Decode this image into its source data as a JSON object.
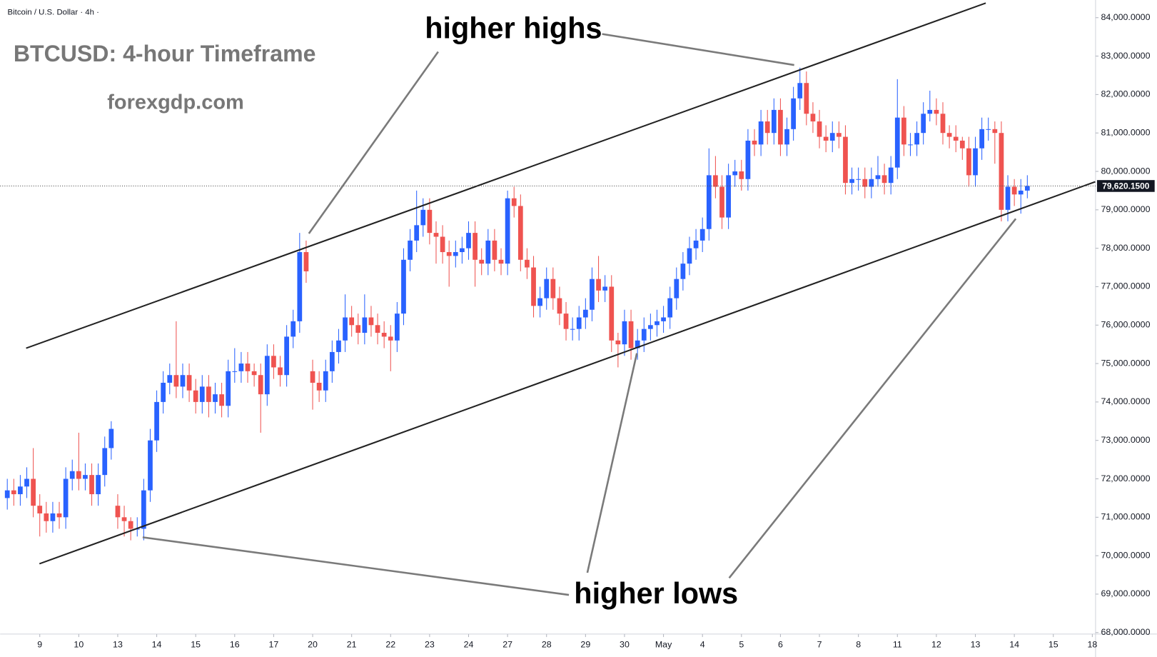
{
  "chart_data": {
    "type": "candlestick",
    "symbol": "Bitcoin / U.S. Dollar · 4h ·",
    "title": "BTCUSD: 4-hour Timeframe",
    "subtitle": "forexgdp.com",
    "annotations": [
      "higher highs",
      "higher lows"
    ],
    "up_color": "#2962ff",
    "down_color": "#ef5350",
    "grid": false,
    "xlim": [
      -1.1,
      167.5
    ],
    "xticks": [
      {
        "value": 5,
        "label": "9"
      },
      {
        "value": 11,
        "label": "10"
      },
      {
        "value": 17,
        "label": "13"
      },
      {
        "value": 23,
        "label": "14"
      },
      {
        "value": 29,
        "label": "15"
      },
      {
        "value": 35,
        "label": "16"
      },
      {
        "value": 41,
        "label": "17"
      },
      {
        "value": 47,
        "label": "20"
      },
      {
        "value": 53,
        "label": "21"
      },
      {
        "value": 59,
        "label": "22"
      },
      {
        "value": 65,
        "label": "23"
      },
      {
        "value": 71,
        "label": "24"
      },
      {
        "value": 77,
        "label": "27"
      },
      {
        "value": 83,
        "label": "28"
      },
      {
        "value": 89,
        "label": "29"
      },
      {
        "value": 95,
        "label": "30"
      },
      {
        "value": 101,
        "label": "May"
      },
      {
        "value": 107,
        "label": "4"
      },
      {
        "value": 113,
        "label": "5"
      },
      {
        "value": 119,
        "label": "6"
      },
      {
        "value": 125,
        "label": "7"
      },
      {
        "value": 131,
        "label": "8"
      },
      {
        "value": 137,
        "label": "11"
      },
      {
        "value": 143,
        "label": "12"
      },
      {
        "value": 149,
        "label": "13"
      },
      {
        "value": 155,
        "label": "14"
      },
      {
        "value": 161,
        "label": "15"
      },
      {
        "value": 167,
        "label": "18"
      }
    ],
    "ylim": [
      67960,
      84460
    ],
    "yticks": [
      {
        "value": 68000,
        "label": "68,000.0000"
      },
      {
        "value": 69000,
        "label": "69,000.0000"
      },
      {
        "value": 70000,
        "label": "70,000.0000"
      },
      {
        "value": 71000,
        "label": "71,000.0000"
      },
      {
        "value": 72000,
        "label": "72,000.0000"
      },
      {
        "value": 73000,
        "label": "73,000.0000"
      },
      {
        "value": 74000,
        "label": "74,000.0000"
      },
      {
        "value": 75000,
        "label": "75,000.0000"
      },
      {
        "value": 76000,
        "label": "76,000.0000"
      },
      {
        "value": 77000,
        "label": "77,000.0000"
      },
      {
        "value": 78000,
        "label": "78,000.0000"
      },
      {
        "value": 79000,
        "label": "79,000.0000"
      },
      {
        "value": 80000,
        "label": "80,000.0000"
      },
      {
        "value": 81000,
        "label": "81,000.0000"
      },
      {
        "value": 82000,
        "label": "82,000.0000"
      },
      {
        "value": 83000,
        "label": "83,000.0000"
      },
      {
        "value": 84000,
        "label": "84,000.0000"
      }
    ],
    "last_price": {
      "value": 79620.15,
      "label": "79,620.1500"
    },
    "trendlines": [
      {
        "color": "#222222",
        "x": [
          2.9,
          150.6
        ],
        "y": [
          75400,
          84380
        ]
      },
      {
        "color": "#222222",
        "x": [
          4.95,
          167.45
        ],
        "y": [
          69790,
          79730
        ]
      }
    ],
    "open": [
      71500,
      71700,
      71600,
      71800,
      72000,
      71300,
      71100,
      70900,
      71100,
      71000,
      72000,
      72200,
      72000,
      72100,
      71600,
      72100,
      72800,
      71300,
      71000,
      70900,
      70700,
      70700,
      71700,
      73000,
      74000,
      74500,
      74700,
      74400,
      74700,
      74300,
      74000,
      74400,
      74000,
      74200,
      73900,
      74800,
      74800,
      75000,
      74800,
      74700,
      74200,
      75200,
      74900,
      74700,
      75700,
      76100,
      77900,
      74800,
      74500,
      74300,
      74800,
      75300,
      75600,
      76200,
      76000,
      75800,
      76200,
      76000,
      75800,
      75700,
      75600,
      76300,
      77700,
      78200,
      78600,
      79000,
      78400,
      78300,
      77900,
      77800,
      77900,
      78000,
      78400,
      77700,
      77600,
      78200,
      77700,
      77600,
      79300,
      79100,
      77700,
      77500,
      76500,
      76700,
      77200,
      76700,
      76300,
      75900,
      75900,
      76200,
      76400,
      77200,
      76900,
      77000,
      75600,
      75500,
      76100,
      75400,
      75600,
      75900,
      76000,
      76100,
      76200,
      76700,
      77200,
      77600,
      78000,
      78200,
      78500,
      79900,
      79600,
      78800,
      79900,
      80000,
      79800,
      80800,
      80700,
      81300,
      81000,
      81600,
      80700,
      81100,
      81900,
      82300,
      81500,
      81300,
      80900,
      80800,
      81000,
      80900,
      79700,
      79800,
      79800,
      79600,
      79800,
      79900,
      79700,
      80100,
      81400,
      80700,
      80700,
      81000,
      81500,
      81600,
      81500,
      81000,
      80900,
      80800,
      80600,
      79900,
      80600,
      81100,
      81100,
      81000,
      79000,
      79600,
      79400,
      79500
    ],
    "high": [
      72000,
      72000,
      72100,
      72300,
      72800,
      71600,
      71400,
      71400,
      71400,
      72300,
      72500,
      73200,
      72400,
      72400,
      72400,
      73100,
      73500,
      71600,
      71300,
      71000,
      71000,
      72000,
      73300,
      74300,
      74800,
      75000,
      76100,
      75000,
      75000,
      74600,
      74700,
      74700,
      74500,
      74500,
      75100,
      75400,
      75300,
      75300,
      75000,
      75000,
      75500,
      75500,
      75200,
      76000,
      76400,
      78400,
      78200,
      75100,
      74800,
      75100,
      75600,
      75900,
      76800,
      76500,
      76300,
      76800,
      76500,
      76300,
      76100,
      76000,
      76600,
      78000,
      78500,
      79500,
      79300,
      79300,
      78700,
      78600,
      78200,
      78200,
      78300,
      78700,
      78700,
      78000,
      78500,
      78500,
      78000,
      79500,
      79600,
      79400,
      78000,
      77800,
      77000,
      77500,
      77500,
      77000,
      76600,
      76200,
      76500,
      76700,
      77500,
      77800,
      77300,
      77300,
      75800,
      76400,
      76400,
      75900,
      76200,
      76300,
      76400,
      76500,
      77000,
      77500,
      77900,
      78300,
      78500,
      78800,
      80600,
      80400,
      79900,
      80200,
      80300,
      80300,
      81100,
      81100,
      81600,
      81600,
      81900,
      81900,
      81400,
      82200,
      82700,
      82600,
      81800,
      81600,
      81200,
      81300,
      81300,
      81200,
      80100,
      80100,
      80100,
      80100,
      80400,
      80200,
      80400,
      82400,
      81700,
      81000,
      81300,
      81800,
      82100,
      81900,
      81800,
      81200,
      81200,
      80900,
      80900,
      80900,
      81400,
      81400,
      81300,
      81300,
      79900,
      79800,
      79800,
      79900
    ],
    "low": [
      71200,
      71300,
      71300,
      71500,
      71000,
      70500,
      70600,
      70600,
      70700,
      70700,
      71700,
      71700,
      71700,
      71300,
      71300,
      71800,
      72500,
      70700,
      70500,
      70400,
      70500,
      70400,
      71400,
      72700,
      73700,
      74200,
      74100,
      74100,
      74000,
      73700,
      73700,
      73600,
      73700,
      73600,
      73600,
      74500,
      74500,
      74500,
      74400,
      73200,
      73900,
      74600,
      74400,
      74400,
      75400,
      75800,
      77100,
      73800,
      74000,
      74000,
      74500,
      75000,
      75300,
      75700,
      75500,
      75500,
      75700,
      75500,
      75400,
      74800,
      75300,
      76000,
      77400,
      77900,
      78300,
      78100,
      77600,
      77600,
      77000,
      77500,
      77600,
      77700,
      77000,
      77300,
      77300,
      77400,
      77300,
      77300,
      78800,
      77400,
      77200,
      76200,
      76200,
      76400,
      76400,
      76000,
      75600,
      75600,
      75600,
      75900,
      76100,
      76600,
      76600,
      75300,
      74900,
      75200,
      75100,
      75100,
      75300,
      75600,
      75700,
      75800,
      75900,
      76400,
      76900,
      77300,
      77700,
      77900,
      78200,
      79300,
      78500,
      78500,
      79600,
      79500,
      79500,
      80400,
      80400,
      80700,
      80700,
      80400,
      80400,
      80800,
      81600,
      81200,
      81000,
      80600,
      80500,
      80500,
      80600,
      79400,
      79400,
      79500,
      79300,
      79300,
      79600,
      79400,
      79400,
      79800,
      80400,
      80400,
      80400,
      80700,
      81300,
      81200,
      80700,
      80600,
      80500,
      80300,
      79600,
      79600,
      80300,
      80800,
      80200,
      78700,
      78700,
      79100,
      78900,
      79300
    ],
    "close": [
      71700,
      71600,
      71800,
      72000,
      71300,
      71100,
      70900,
      71100,
      71000,
      72000,
      72200,
      72000,
      72100,
      71600,
      72100,
      72800,
      73300,
      71000,
      70900,
      70700,
      70700,
      71700,
      73000,
      74000,
      74500,
      74700,
      74400,
      74700,
      74300,
      74000,
      74400,
      74000,
      74200,
      73900,
      74800,
      74800,
      75000,
      74800,
      74700,
      74200,
      75200,
      74900,
      74700,
      75700,
      76100,
      77900,
      77400,
      74500,
      74300,
      74800,
      75300,
      75600,
      76200,
      76000,
      75800,
      76200,
      76000,
      75800,
      75700,
      75600,
      76300,
      77700,
      78200,
      78600,
      79000,
      78400,
      78300,
      77900,
      77800,
      77900,
      78000,
      78400,
      77700,
      77600,
      78200,
      77700,
      77600,
      79300,
      79100,
      77700,
      77500,
      76500,
      76700,
      77200,
      76700,
      76300,
      75900,
      75900,
      76200,
      76400,
      77200,
      76900,
      77000,
      75600,
      75500,
      76100,
      75400,
      75600,
      75900,
      76000,
      76100,
      76200,
      76700,
      77200,
      77600,
      78000,
      78200,
      78500,
      79900,
      79600,
      78800,
      79900,
      80000,
      79800,
      80800,
      80700,
      81300,
      81000,
      81600,
      80700,
      81100,
      81900,
      82300,
      81500,
      81300,
      80900,
      80800,
      81000,
      80900,
      79700,
      79800,
      79800,
      79600,
      79800,
      79900,
      79700,
      80100,
      81400,
      80700,
      80700,
      81000,
      81500,
      81600,
      81500,
      81000,
      80900,
      80800,
      80600,
      79900,
      80600,
      81100,
      81100,
      81000,
      79000,
      79600,
      79400,
      79500,
      79620
    ]
  }
}
